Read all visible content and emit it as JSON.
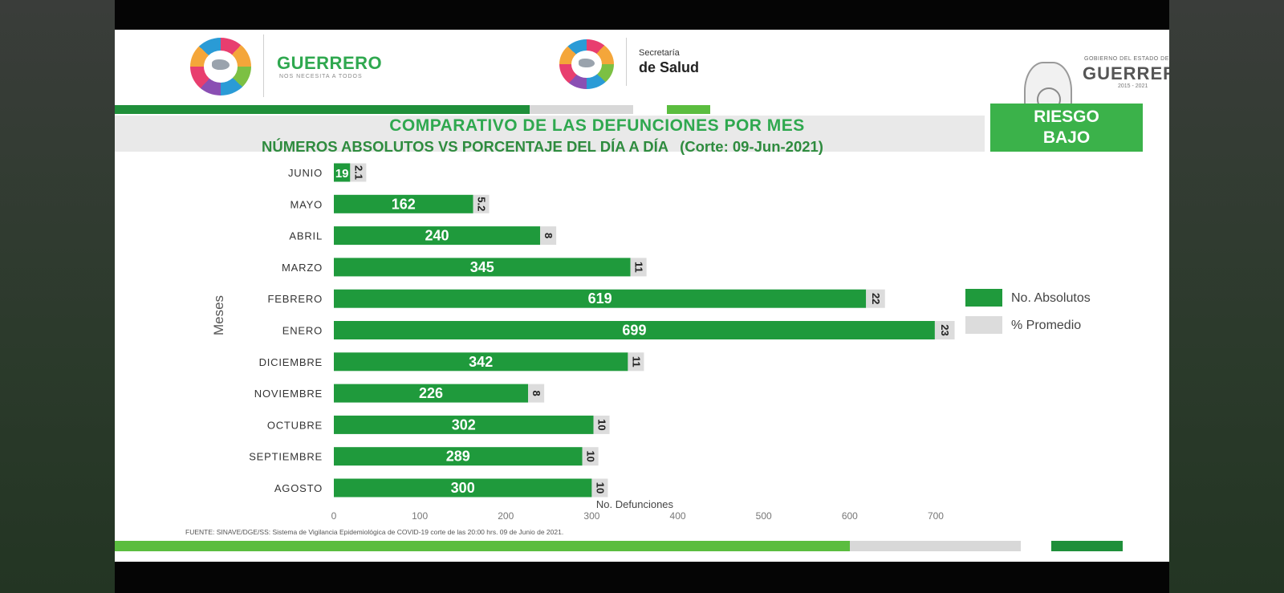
{
  "header": {
    "left_logo": {
      "name": "GUERRERO",
      "tagline": "NOS NECESITA A TODOS"
    },
    "center_logo": {
      "line1": "Secretaría",
      "line2": "de Salud"
    },
    "right_logo": {
      "line1": "GOBIERNO DEL ESTADO DE",
      "line2": "GUERRERO",
      "line3": "2015 - 2021"
    }
  },
  "risk_badge": {
    "line1": "RIESGO",
    "line2": "BAJO",
    "color": "#3bb24a"
  },
  "source_note": "FUENTE: SINAVE/DGE/SS: Sistema de Vigilancia Epidemiológica de COVID-19 corte de las 20:00 hrs. 09 de Junio de 2021.",
  "colors": {
    "absolutos": "#1f9a3c",
    "promedio": "#dcdcdc",
    "title": "#2fa84f"
  },
  "chart_data": {
    "type": "bar",
    "orientation": "horizontal",
    "stacked": true,
    "title": "COMPARATIVO DE LAS DEFUNCIONES POR MES",
    "subtitle": "NÚMEROS ABSOLUTOS VS PORCENTAJE DEL DÍA A DÍA",
    "cutoff": "(Corte: 09-Jun-2021)",
    "xlabel": "No. Defunciones",
    "ylabel": "Meses",
    "xlim": [
      0,
      700
    ],
    "xticks": [
      0,
      100,
      200,
      300,
      400,
      500,
      600,
      700
    ],
    "categories": [
      "JUNIO",
      "MAYO",
      "ABRIL",
      "MARZO",
      "FEBRERO",
      "ENERO",
      "DICIEMBRE",
      "NOVIEMBRE",
      "OCTUBRE",
      "SEPTIEMBRE",
      "AGOSTO"
    ],
    "series": [
      {
        "name": "No. Absolutos",
        "values": [
          19,
          162,
          240,
          345,
          619,
          699,
          342,
          226,
          302,
          289,
          300
        ],
        "labels": [
          "19",
          "162",
          "240",
          "345",
          "619",
          "699",
          "342",
          "226",
          "302",
          "289",
          "300"
        ]
      },
      {
        "name": "% Promedio",
        "values": [
          2.1,
          5.2,
          8,
          11,
          22,
          23,
          11,
          8,
          10,
          10,
          10
        ],
        "labels": [
          "2.1",
          "5.2",
          "8",
          "11",
          "22",
          "23",
          "11",
          "8",
          "10",
          "10",
          "10"
        ]
      }
    ],
    "legend_position": "right"
  }
}
